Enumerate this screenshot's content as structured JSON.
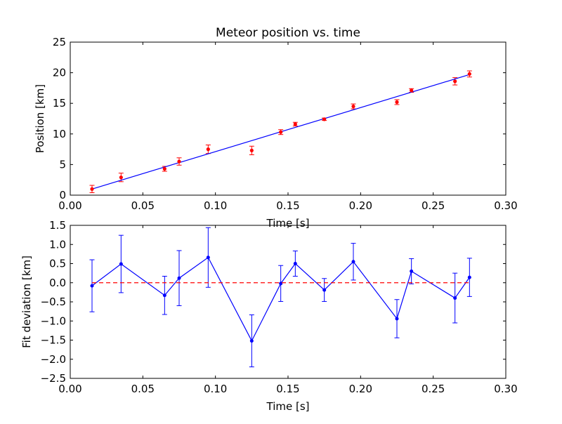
{
  "chart_data": [
    {
      "type": "scatter",
      "title": "Meteor position vs. time",
      "xlabel": "Time [s]",
      "ylabel": "Position [km]",
      "xlim": [
        0.0,
        0.3
      ],
      "ylim": [
        0,
        25
      ],
      "xticks": [
        "0.00",
        "0.05",
        "0.10",
        "0.15",
        "0.20",
        "0.25",
        "0.30"
      ],
      "yticks": [
        "0",
        "5",
        "10",
        "15",
        "20",
        "25"
      ],
      "grid": false,
      "series": [
        {
          "kind": "points-with-errorbars",
          "color": "#ff0000",
          "errorbar_color": "#ff0000",
          "x": [
            0.015,
            0.035,
            0.065,
            0.075,
            0.095,
            0.125,
            0.145,
            0.155,
            0.175,
            0.195,
            0.225,
            0.235,
            0.265,
            0.275
          ],
          "y": [
            1.0,
            2.9,
            4.3,
            5.5,
            7.5,
            7.3,
            10.3,
            11.6,
            12.4,
            14.5,
            15.2,
            17.1,
            18.6,
            19.8
          ],
          "yerr": [
            0.6,
            0.7,
            0.4,
            0.6,
            0.7,
            0.7,
            0.4,
            0.3,
            0.2,
            0.4,
            0.4,
            0.3,
            0.6,
            0.5
          ]
        },
        {
          "kind": "fit-line",
          "color": "#0000ff",
          "x": [
            0.015,
            0.275
          ],
          "y": [
            1.0,
            19.7
          ]
        }
      ]
    },
    {
      "type": "line",
      "title": "",
      "xlabel": "Time [s]",
      "ylabel": "Fit deviation [km]",
      "xlim": [
        0.0,
        0.3
      ],
      "ylim": [
        -2.5,
        1.5
      ],
      "xticks": [
        "0.00",
        "0.05",
        "0.10",
        "0.15",
        "0.20",
        "0.25",
        "0.30"
      ],
      "yticks": [
        "−2.5",
        "−2.0",
        "−1.5",
        "−1.0",
        "−0.5",
        "0.0",
        "0.5",
        "1.0",
        "1.5"
      ],
      "grid": false,
      "series": [
        {
          "kind": "line-with-errorbars",
          "color": "#0000ff",
          "x": [
            0.015,
            0.035,
            0.065,
            0.075,
            0.095,
            0.125,
            0.145,
            0.155,
            0.175,
            0.195,
            0.225,
            0.235,
            0.265,
            0.275
          ],
          "y": [
            -0.08,
            0.49,
            -0.33,
            0.12,
            0.66,
            -1.52,
            -0.02,
            0.5,
            -0.19,
            0.55,
            -0.94,
            0.3,
            -0.4,
            0.14
          ],
          "yerr": [
            0.68,
            0.75,
            0.5,
            0.72,
            0.78,
            0.68,
            0.47,
            0.33,
            0.3,
            0.48,
            0.5,
            0.33,
            0.65,
            0.5
          ]
        },
        {
          "kind": "reference-line",
          "color": "#ff0000",
          "style": "dashed",
          "x": [
            0.015,
            0.275
          ],
          "y": [
            0.0,
            0.0
          ]
        }
      ]
    }
  ]
}
